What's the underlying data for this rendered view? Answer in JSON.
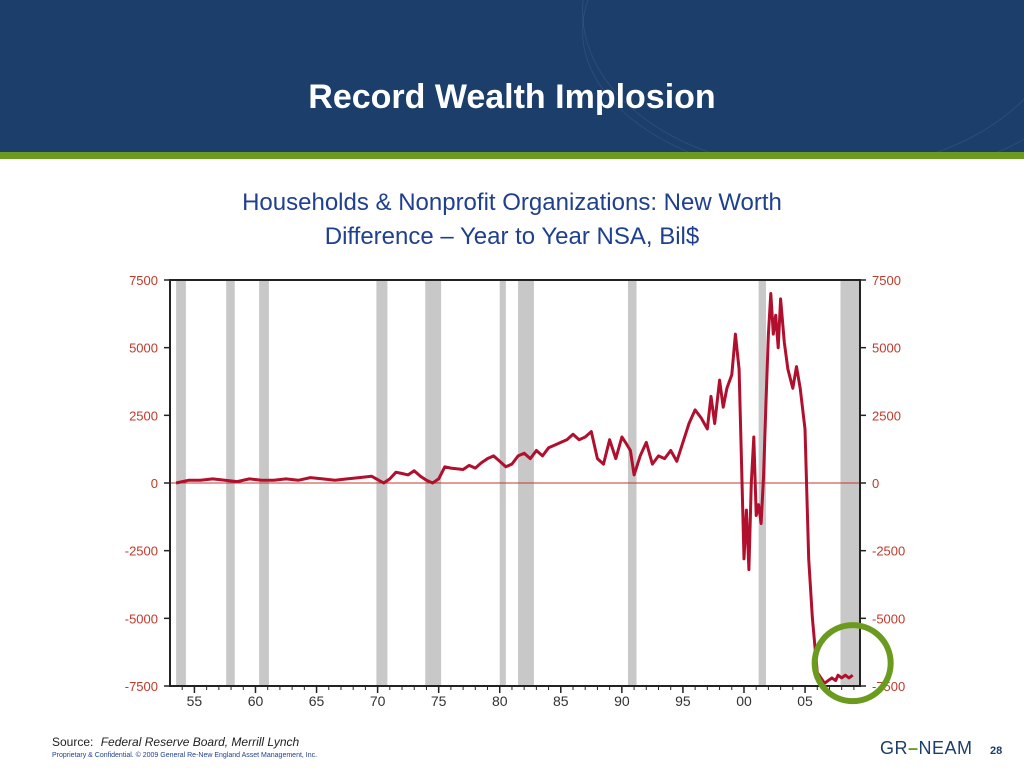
{
  "slide": {
    "title": "Record Wealth Implosion",
    "subtitle_line1": "Households & Nonprofit Organizations:  New Worth",
    "subtitle_line2": "Difference – Year to Year NSA, Bil$",
    "source_label": "Source:",
    "source_value": "Federal Reserve Board, Merrill Lynch",
    "copyright": "Proprietary & Confidential. © 2009 General Re-New England Asset Management, Inc.",
    "logo_left": "GR",
    "logo_dash": "–",
    "logo_right": "NEAM",
    "page_number": "28"
  },
  "colors": {
    "header": "#1b3e6b",
    "accent_green": "#6b9b1e",
    "series": "#b0102e",
    "recession": "#c8c8c8",
    "zero_line": "#c0392b",
    "tick_labels": "#c0392b"
  },
  "chart_data": {
    "type": "line",
    "title": "",
    "xlabel": "",
    "ylabel": "",
    "xlim": [
      1953,
      2009.5
    ],
    "ylim": [
      -7500,
      7500
    ],
    "yticks": [
      7500,
      5000,
      2500,
      0,
      -2500,
      -5000,
      -7500
    ],
    "ytick_labels": [
      "7500",
      "5000",
      "2500",
      "0",
      "-2500",
      "-5000",
      "-7500"
    ],
    "ytick_labels_right": [
      "7500",
      "5000",
      "2500",
      "0",
      "-2500",
      "-5000",
      "-7500"
    ],
    "xticks": [
      1955,
      1960,
      1965,
      1970,
      1975,
      1980,
      1985,
      1990,
      1995,
      2000,
      2005
    ],
    "xtick_labels": [
      "55",
      "60",
      "65",
      "70",
      "75",
      "80",
      "85",
      "90",
      "95",
      "00",
      "05"
    ],
    "recession_bands": [
      [
        1953.5,
        1954.3
      ],
      [
        1957.6,
        1958.3
      ],
      [
        1960.3,
        1961.1
      ],
      [
        1969.9,
        1970.8
      ],
      [
        1973.9,
        1975.2
      ],
      [
        1980.0,
        1980.5
      ],
      [
        1981.5,
        1982.8
      ],
      [
        1990.5,
        1991.2
      ],
      [
        2001.2,
        2001.8
      ],
      [
        2007.9,
        2009.5
      ]
    ],
    "annotation": "circle highlighting latest value",
    "series": [
      {
        "name": "",
        "x": [
          1953.5,
          1954.5,
          1955.5,
          1956.5,
          1957.5,
          1958.5,
          1959.5,
          1960.5,
          1961.5,
          1962.5,
          1963.5,
          1964.5,
          1965.5,
          1966.5,
          1967.5,
          1968.5,
          1969.5,
          1970.5,
          1971.0,
          1971.5,
          1972.0,
          1972.5,
          1973.0,
          1973.5,
          1974.0,
          1974.5,
          1975.0,
          1975.5,
          1976.0,
          1977.0,
          1977.5,
          1978.0,
          1978.5,
          1979.0,
          1979.5,
          1980.0,
          1980.5,
          1981.0,
          1981.5,
          1982.0,
          1982.5,
          1983.0,
          1983.5,
          1984.0,
          1984.5,
          1985.0,
          1985.5,
          1986.0,
          1986.5,
          1987.0,
          1987.5,
          1988.0,
          1988.5,
          1989.0,
          1989.5,
          1990.0,
          1990.3,
          1990.7,
          1991.0,
          1991.5,
          1992.0,
          1992.5,
          1993.0,
          1993.5,
          1994.0,
          1994.5,
          1995.0,
          1995.5,
          1996.0,
          1996.5,
          1997.0,
          1997.3,
          1997.6,
          1998.0,
          1998.3,
          1998.6,
          1999.0,
          1999.3,
          1999.6,
          2000.0,
          2000.2,
          2000.4,
          2000.6,
          2000.8,
          2001.0,
          2001.2,
          2001.4,
          2001.6,
          2001.8,
          2002.0,
          2002.2,
          2002.4,
          2002.6,
          2002.8,
          2003.0,
          2003.3,
          2003.6,
          2004.0,
          2004.3,
          2004.6,
          2005.0,
          2005.3,
          2005.6,
          2006.0,
          2006.3,
          2006.6,
          2006.9,
          2007.2,
          2007.5,
          2007.7,
          2008.0,
          2008.3,
          2008.6,
          2008.9
        ],
        "y": [
          0,
          100,
          100,
          150,
          100,
          50,
          150,
          100,
          100,
          150,
          100,
          200,
          150,
          100,
          150,
          200,
          250,
          0,
          150,
          400,
          350,
          300,
          450,
          250,
          100,
          0,
          150,
          600,
          550,
          500,
          650,
          550,
          750,
          900,
          1000,
          800,
          600,
          700,
          1000,
          1100,
          900,
          1200,
          1000,
          1300,
          1400,
          1500,
          1600,
          1800,
          1600,
          1700,
          1900,
          900,
          700,
          1600,
          900,
          1700,
          1500,
          1200,
          300,
          1000,
          1500,
          700,
          1000,
          900,
          1200,
          800,
          1500,
          2200,
          2700,
          2400,
          2000,
          3200,
          2200,
          3800,
          2800,
          3500,
          4000,
          5500,
          4200,
          -2800,
          -1000,
          -3200,
          0,
          1700,
          -1200,
          -800,
          -1500,
          200,
          3000,
          5500,
          7000,
          5500,
          6200,
          5000,
          6800,
          5200,
          4200,
          3500,
          4300,
          3500,
          2000,
          -2800,
          -5000,
          -7000,
          -7200,
          -7400,
          -7300,
          -7200,
          -7300,
          -7100,
          -7200,
          -7100,
          -7200,
          -7100
        ],
        "color": "#b0102e"
      }
    ]
  }
}
